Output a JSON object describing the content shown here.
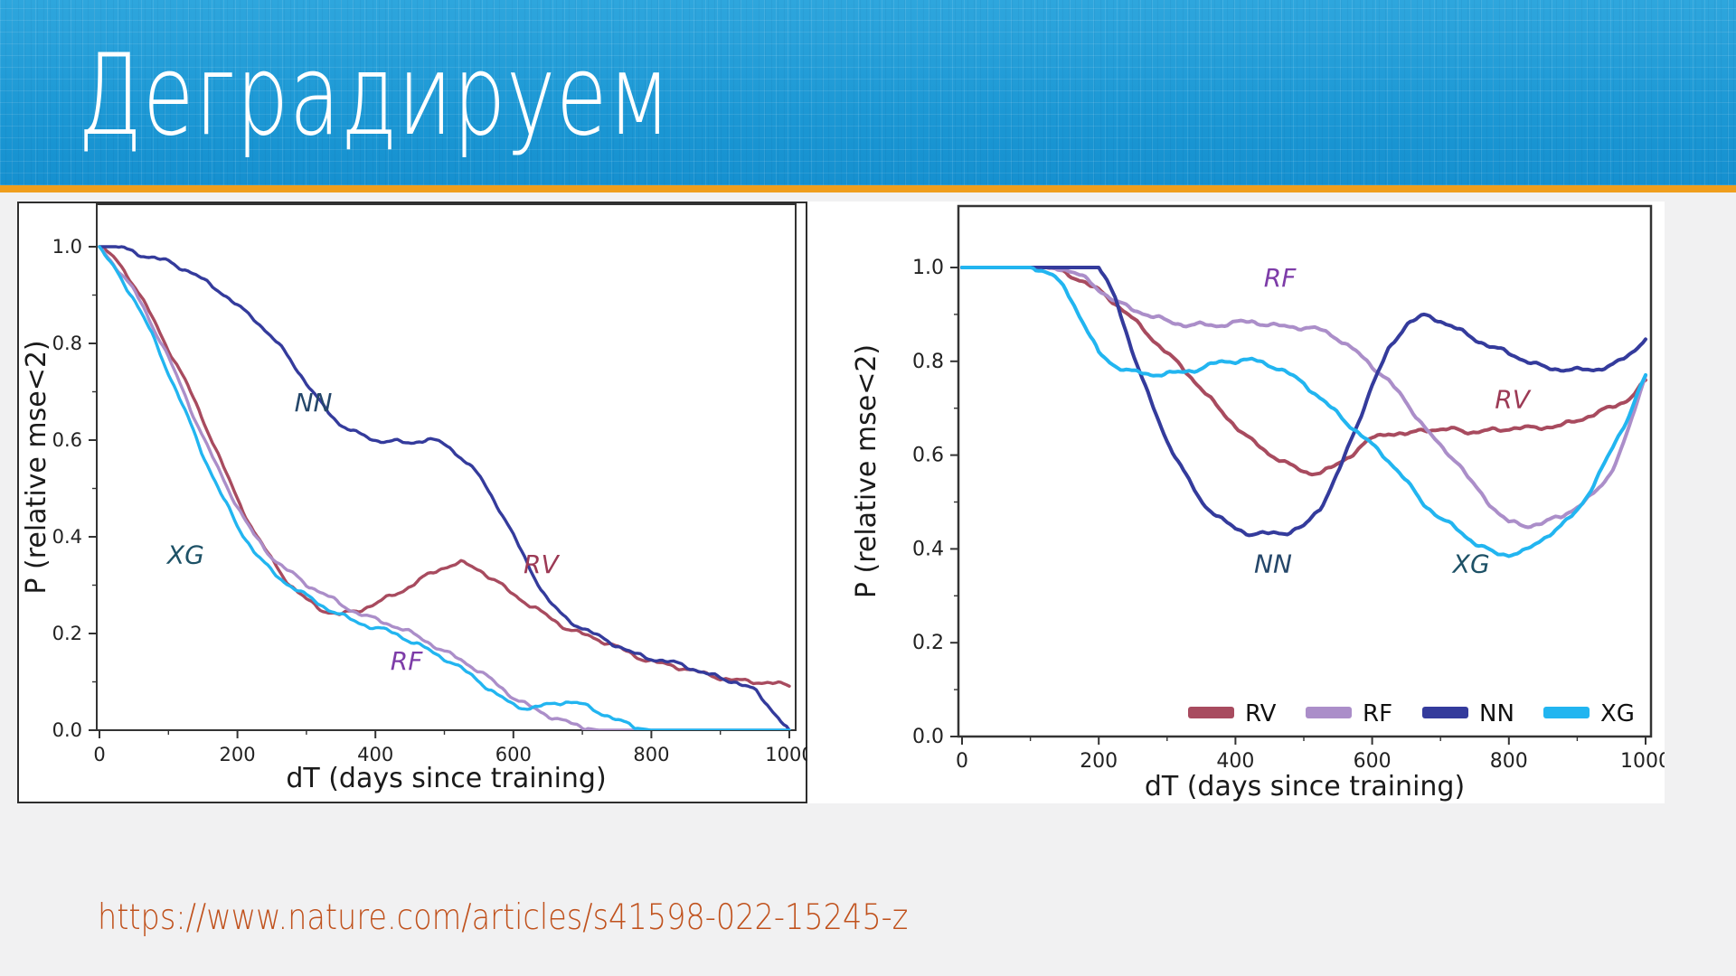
{
  "header": {
    "title": "Деградируем",
    "background_color": "#1b97d4",
    "accent_color": "#ef9e1d"
  },
  "footer": {
    "link": "https://www.nature.com/articles/s41598-022-15245-z",
    "link_color": "#c0511c"
  },
  "palette": {
    "RV": "#a84b5f",
    "RF": "#ab8ec9",
    "NN": "#343b9c",
    "XG": "#22b5f0",
    "spine": "#333333",
    "tick_text": "#222222",
    "panel_border": "#2e2e2e"
  },
  "chart_data": [
    {
      "type": "line",
      "title": "",
      "xlabel": "dT (days since training)",
      "ylabel": "P (relative mse<2)",
      "xlim": [
        0,
        1000
      ],
      "ylim": [
        0.0,
        1.09
      ],
      "grid": false,
      "x_ticks": [
        0,
        200,
        400,
        600,
        800,
        1000
      ],
      "y_ticks": [
        1.0,
        0.8,
        0.6,
        0.4,
        0.2,
        0.0
      ],
      "x_step": 25,
      "legend": null,
      "series": [
        {
          "name": "RV",
          "color": "#a84b5f",
          "values": [
            1.0,
            0.97,
            0.92,
            0.86,
            0.79,
            0.72,
            0.64,
            0.56,
            0.48,
            0.41,
            0.35,
            0.3,
            0.27,
            0.25,
            0.24,
            0.245,
            0.26,
            0.28,
            0.3,
            0.32,
            0.335,
            0.345,
            0.335,
            0.31,
            0.28,
            0.255,
            0.235,
            0.215,
            0.2,
            0.185,
            0.17,
            0.155,
            0.145,
            0.135,
            0.125,
            0.115,
            0.11,
            0.105,
            0.1,
            0.095,
            0.09
          ]
        },
        {
          "name": "RF",
          "color": "#ab8ec9",
          "values": [
            1.0,
            0.96,
            0.91,
            0.84,
            0.77,
            0.69,
            0.61,
            0.53,
            0.46,
            0.4,
            0.36,
            0.33,
            0.3,
            0.28,
            0.26,
            0.245,
            0.23,
            0.215,
            0.2,
            0.185,
            0.165,
            0.145,
            0.12,
            0.095,
            0.07,
            0.05,
            0.03,
            0.015,
            0.005,
            0.0,
            0.0,
            0.0,
            0.0,
            0.0,
            0.0,
            0.0,
            0.0,
            0.0,
            0.0,
            0.0,
            0.0
          ]
        },
        {
          "name": "NN",
          "color": "#343b9c",
          "values": [
            1.0,
            1.0,
            0.99,
            0.98,
            0.97,
            0.95,
            0.93,
            0.91,
            0.88,
            0.85,
            0.81,
            0.77,
            0.72,
            0.67,
            0.63,
            0.61,
            0.6,
            0.6,
            0.595,
            0.6,
            0.59,
            0.565,
            0.53,
            0.47,
            0.4,
            0.33,
            0.27,
            0.235,
            0.21,
            0.19,
            0.175,
            0.16,
            0.15,
            0.14,
            0.13,
            0.12,
            0.11,
            0.1,
            0.08,
            0.04,
            0.0
          ]
        },
        {
          "name": "XG",
          "color": "#22b5f0",
          "values": [
            1.0,
            0.95,
            0.89,
            0.82,
            0.74,
            0.66,
            0.57,
            0.49,
            0.42,
            0.37,
            0.33,
            0.3,
            0.275,
            0.255,
            0.24,
            0.225,
            0.21,
            0.2,
            0.185,
            0.17,
            0.15,
            0.125,
            0.1,
            0.075,
            0.055,
            0.045,
            0.05,
            0.058,
            0.055,
            0.04,
            0.02,
            0.005,
            0.0,
            0.0,
            0.0,
            0.0,
            0.0,
            0.0,
            0.0,
            0.0,
            0.0
          ]
        }
      ],
      "annotations": [
        {
          "text": "NN",
          "x": 310,
          "y": 0.66,
          "color": "#25476a"
        },
        {
          "text": "RV",
          "x": 640,
          "y": 0.325,
          "color": "#9c3a55"
        },
        {
          "text": "XG",
          "x": 125,
          "y": 0.345,
          "color": "#1d5166"
        },
        {
          "text": "RF",
          "x": 445,
          "y": 0.125,
          "color": "#7d3ca8"
        }
      ]
    },
    {
      "type": "line",
      "title": "",
      "xlabel": "dT (days since training)",
      "ylabel": "P (relative mse<2)",
      "xlim": [
        0,
        1000
      ],
      "ylim": [
        0.0,
        1.13
      ],
      "grid": false,
      "x_ticks": [
        0,
        200,
        400,
        600,
        800,
        1000
      ],
      "y_ticks": [
        1.0,
        0.8,
        0.6,
        0.4,
        0.2,
        0.0
      ],
      "x_step": 25,
      "legend": {
        "position": "lower right",
        "items": [
          "RV",
          "RF",
          "NN",
          "XG"
        ]
      },
      "series": [
        {
          "name": "RV",
          "color": "#a84b5f",
          "values": [
            1.0,
            1.0,
            1.0,
            1.0,
            1.0,
            1.0,
            0.99,
            0.975,
            0.95,
            0.92,
            0.89,
            0.855,
            0.82,
            0.78,
            0.74,
            0.7,
            0.665,
            0.63,
            0.6,
            0.58,
            0.565,
            0.565,
            0.58,
            0.605,
            0.635,
            0.65,
            0.645,
            0.655,
            0.65,
            0.655,
            0.65,
            0.655,
            0.655,
            0.655,
            0.66,
            0.665,
            0.675,
            0.685,
            0.7,
            0.72,
            0.76
          ]
        },
        {
          "name": "RF",
          "color": "#ab8ec9",
          "values": [
            1.0,
            1.0,
            1.0,
            1.0,
            1.0,
            1.0,
            0.995,
            0.98,
            0.955,
            0.93,
            0.91,
            0.895,
            0.885,
            0.88,
            0.88,
            0.875,
            0.88,
            0.885,
            0.88,
            0.875,
            0.87,
            0.865,
            0.85,
            0.825,
            0.79,
            0.755,
            0.71,
            0.665,
            0.62,
            0.585,
            0.53,
            0.49,
            0.46,
            0.45,
            0.455,
            0.465,
            0.49,
            0.52,
            0.565,
            0.65,
            0.77
          ]
        },
        {
          "name": "NN",
          "color": "#343b9c",
          "values": [
            1.0,
            1.0,
            1.0,
            1.0,
            1.0,
            1.0,
            1.0,
            1.0,
            1.0,
            0.93,
            0.82,
            0.72,
            0.63,
            0.56,
            0.5,
            0.47,
            0.445,
            0.43,
            0.43,
            0.435,
            0.45,
            0.49,
            0.56,
            0.65,
            0.75,
            0.83,
            0.88,
            0.895,
            0.885,
            0.87,
            0.85,
            0.83,
            0.815,
            0.8,
            0.79,
            0.785,
            0.78,
            0.78,
            0.79,
            0.815,
            0.85
          ]
        },
        {
          "name": "XG",
          "color": "#22b5f0",
          "values": [
            1.0,
            1.0,
            1.0,
            1.0,
            1.0,
            0.99,
            0.955,
            0.89,
            0.82,
            0.79,
            0.775,
            0.77,
            0.775,
            0.78,
            0.785,
            0.795,
            0.8,
            0.805,
            0.795,
            0.775,
            0.75,
            0.72,
            0.69,
            0.655,
            0.62,
            0.585,
            0.545,
            0.5,
            0.465,
            0.44,
            0.41,
            0.395,
            0.39,
            0.395,
            0.42,
            0.445,
            0.485,
            0.54,
            0.61,
            0.68,
            0.77
          ]
        }
      ],
      "annotations": [
        {
          "text": "RF",
          "x": 465,
          "y": 0.96,
          "color": "#7d3ca8"
        },
        {
          "text": "RV",
          "x": 805,
          "y": 0.7,
          "color": "#9c3a55"
        },
        {
          "text": "NN",
          "x": 455,
          "y": 0.35,
          "color": "#25476a"
        },
        {
          "text": "XG",
          "x": 745,
          "y": 0.35,
          "color": "#1d5166"
        }
      ]
    }
  ]
}
